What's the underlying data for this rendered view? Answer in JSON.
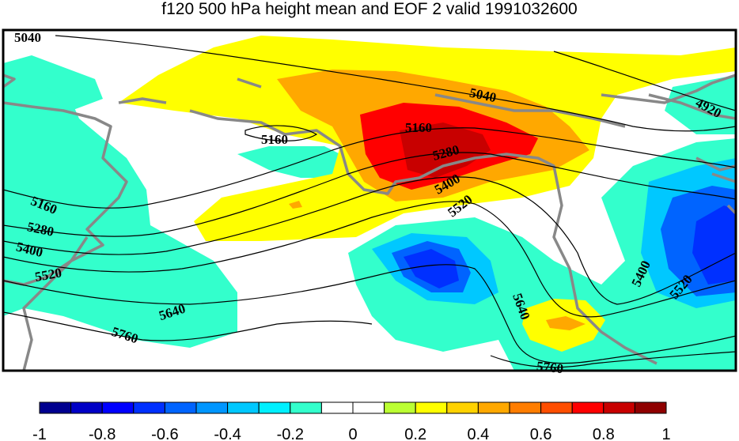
{
  "title": "f120 500 hPa height mean and EOF 2 valid 1991032600",
  "colorbar": {
    "levels": [
      -1,
      -0.9,
      -0.8,
      -0.7,
      -0.6,
      -0.5,
      -0.4,
      -0.3,
      -0.2,
      -0.1,
      0,
      0.1,
      0.2,
      0.3,
      0.4,
      0.5,
      0.6,
      0.7,
      0.8,
      0.9,
      1
    ],
    "colors": [
      "#00008f",
      "#0000c6",
      "#0000ff",
      "#0030ff",
      "#0064ff",
      "#0096ff",
      "#00c8ff",
      "#00f0ff",
      "#33ffcc",
      "#ffffff",
      "#ffffff",
      "#bbff33",
      "#ffff00",
      "#ffd200",
      "#ffa800",
      "#ff7d00",
      "#ff4e00",
      "#ff0000",
      "#c80000",
      "#8f0000"
    ],
    "tick_labels": [
      "-1",
      "-0.8",
      "-0.6",
      "-0.4",
      "-0.2",
      "0",
      "0.2",
      "0.4",
      "0.6",
      "0.8",
      "1"
    ]
  },
  "contour_labels": [
    "5040",
    "5040",
    "4920",
    "5160",
    "5160",
    "5280",
    "5400",
    "5520",
    "5160",
    "5280",
    "5400",
    "5520",
    "5640",
    "5640",
    "5760",
    "5760",
    "5400",
    "5520"
  ],
  "colors": {
    "coastline": "#888888",
    "contour": "#000000",
    "frame": "#000000"
  }
}
